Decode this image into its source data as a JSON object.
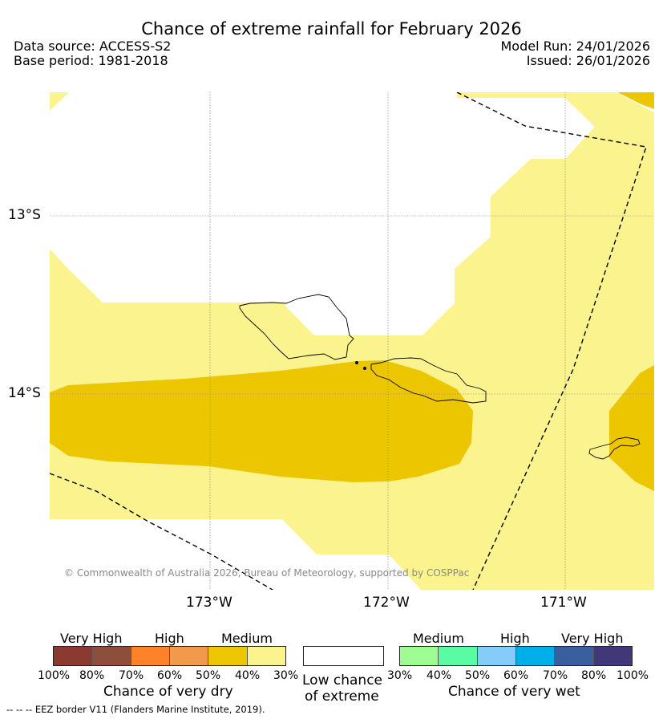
{
  "header": {
    "title": "Chance of extreme rainfall for February 2026",
    "data_source": "Data source: ACCESS-S2",
    "base_period": "Base period: 1981-2018",
    "model_run": "Model Run: 24/01/2026",
    "issued": "Issued: 26/01/2026"
  },
  "map": {
    "latitude_labels": [
      "13°S",
      "14°S"
    ],
    "longitude_labels": [
      "173°W",
      "172°W",
      "171°W"
    ],
    "copyright": "© Commonwealth of Australia 2026, Bureau of Meteorology, supported by COSPPac",
    "colors": {
      "medium_dry": "#fbf38e",
      "high_dry_40": "#ecc600",
      "land_outline": "#000000",
      "eez": "#000000"
    }
  },
  "legend": {
    "dry": {
      "groups": [
        "Very High",
        "High",
        "Medium"
      ],
      "ticks": [
        "100%",
        "80%",
        "70%",
        "60%",
        "50%",
        "40%",
        "30%"
      ],
      "caption": "Chance of very dry",
      "colors": [
        "#8b3a30",
        "#8d4e3c",
        "#ff8228",
        "#f09a4a",
        "#ecc600",
        "#fbf38e"
      ]
    },
    "low": {
      "caption_line1": "Low chance",
      "caption_line2": "of extreme",
      "color": "#ffffff"
    },
    "wet": {
      "groups": [
        "Medium",
        "High",
        "Very High"
      ],
      "ticks": [
        "30%",
        "40%",
        "50%",
        "60%",
        "70%",
        "80%",
        "100%"
      ],
      "caption": "Chance of very wet",
      "colors": [
        "#9ffc92",
        "#5afca3",
        "#86ccfa",
        "#00aee9",
        "#3a5f9e",
        "#41387a"
      ]
    },
    "eez_note": "--  --  -- EEZ border V11 (Flanders Marine Institute, 2019)."
  }
}
